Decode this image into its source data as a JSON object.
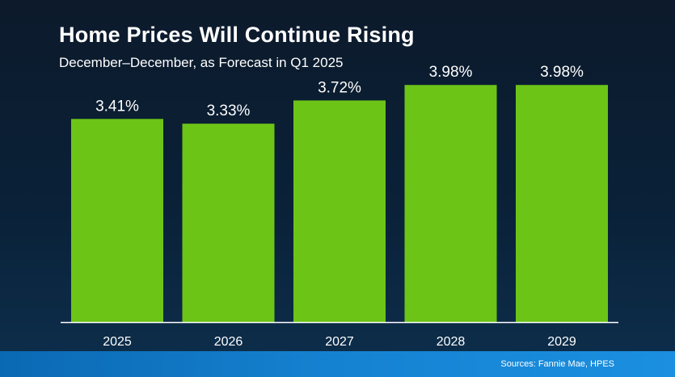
{
  "header": {
    "title": "Home Prices Will Continue Rising",
    "subtitle": "December–December, as Forecast in Q1 2025"
  },
  "footer": {
    "source": "Sources: Fannie Mae, HPES"
  },
  "colors": {
    "bar": "#6cc417",
    "background": "#0b1d31",
    "footer": "#1582d1",
    "text": "#ffffff"
  },
  "chart_data": {
    "type": "bar",
    "categories": [
      "2025",
      "2026",
      "2027",
      "2028",
      "2029"
    ],
    "values": [
      3.41,
      3.33,
      3.72,
      3.98,
      3.98
    ],
    "data_labels": [
      "3.41%",
      "3.33%",
      "3.72%",
      "3.98%",
      "3.98%"
    ],
    "title": "Home Prices Will Continue Rising",
    "subtitle": "December–December, as Forecast in Q1 2025",
    "xlabel": "",
    "ylabel": "",
    "ylim": [
      0,
      4.2
    ],
    "grid": false,
    "legend": "none"
  }
}
